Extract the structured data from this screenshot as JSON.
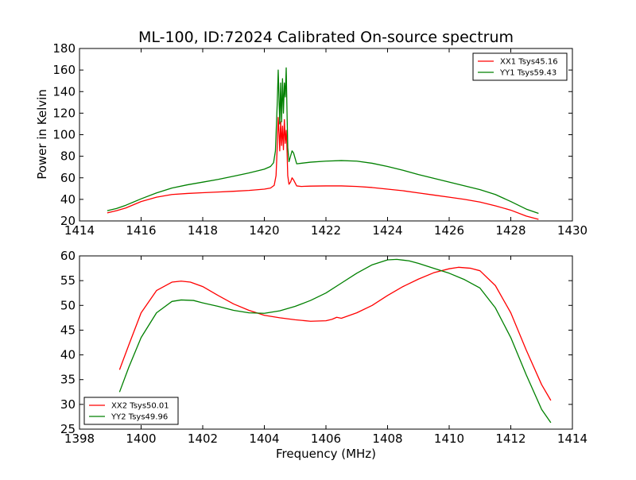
{
  "chart_data": [
    {
      "type": "line",
      "title": "ML-100, ID:72024 Calibrated On-source spectrum",
      "xlabel": "",
      "ylabel": "Power in Kelvin",
      "xlim": [
        1414,
        1430
      ],
      "ylim": [
        20,
        180
      ],
      "xticks": [
        1414,
        1416,
        1418,
        1420,
        1422,
        1424,
        1426,
        1428,
        1430
      ],
      "yticks": [
        20,
        40,
        60,
        80,
        100,
        120,
        140,
        160,
        180
      ],
      "grid": false,
      "legend_position": "top-right",
      "series": [
        {
          "name": "XX1 Tsys45.16",
          "color": "#ff0000",
          "points": [
            [
              1414.9,
              27.5
            ],
            [
              1415.2,
              29.5
            ],
            [
              1415.5,
              32
            ],
            [
              1416.0,
              38
            ],
            [
              1416.5,
              42
            ],
            [
              1417.0,
              44.5
            ],
            [
              1417.5,
              45.5
            ],
            [
              1418.0,
              46.2
            ],
            [
              1418.5,
              46.8
            ],
            [
              1419.0,
              47.5
            ],
            [
              1419.5,
              48.3
            ],
            [
              1420.0,
              49.5
            ],
            [
              1420.2,
              50.5
            ],
            [
              1420.32,
              53
            ],
            [
              1420.38,
              62
            ],
            [
              1420.42,
              90
            ],
            [
              1420.45,
              116
            ],
            [
              1420.48,
              100
            ],
            [
              1420.5,
              85
            ],
            [
              1420.53,
              112
            ],
            [
              1420.56,
              90
            ],
            [
              1420.59,
              108
            ],
            [
              1420.62,
              86
            ],
            [
              1420.65,
              114
            ],
            [
              1420.68,
              92
            ],
            [
              1420.71,
              104
            ],
            [
              1420.73,
              92
            ],
            [
              1420.76,
              62
            ],
            [
              1420.8,
              54
            ],
            [
              1420.85,
              56
            ],
            [
              1420.9,
              60
            ],
            [
              1420.95,
              58
            ],
            [
              1421.05,
              52.5
            ],
            [
              1421.2,
              52
            ],
            [
              1421.5,
              52.3
            ],
            [
              1422.0,
              52.5
            ],
            [
              1422.5,
              52.5
            ],
            [
              1423.0,
              52
            ],
            [
              1423.5,
              51
            ],
            [
              1424.0,
              49.5
            ],
            [
              1424.5,
              48
            ],
            [
              1425.0,
              46
            ],
            [
              1425.5,
              44
            ],
            [
              1426.0,
              42
            ],
            [
              1426.5,
              40
            ],
            [
              1427.0,
              37.5
            ],
            [
              1427.5,
              34
            ],
            [
              1428.0,
              30
            ],
            [
              1428.5,
              24.5
            ],
            [
              1428.9,
              21.5
            ]
          ]
        },
        {
          "name": "YY1 Tsys59.43",
          "color": "#008000",
          "points": [
            [
              1414.9,
              29.5
            ],
            [
              1415.2,
              31.5
            ],
            [
              1415.5,
              34.5
            ],
            [
              1416.0,
              40.5
            ],
            [
              1416.5,
              46
            ],
            [
              1417.0,
              50.5
            ],
            [
              1417.5,
              53.5
            ],
            [
              1418.0,
              56
            ],
            [
              1418.5,
              58.5
            ],
            [
              1419.0,
              61.5
            ],
            [
              1419.5,
              64.5
            ],
            [
              1420.0,
              68
            ],
            [
              1420.2,
              70.5
            ],
            [
              1420.3,
              74
            ],
            [
              1420.36,
              85
            ],
            [
              1420.42,
              130
            ],
            [
              1420.45,
              160
            ],
            [
              1420.48,
              130
            ],
            [
              1420.5,
              110
            ],
            [
              1420.53,
              148
            ],
            [
              1420.56,
              112
            ],
            [
              1420.59,
              152
            ],
            [
              1420.62,
              120
            ],
            [
              1420.65,
              148
            ],
            [
              1420.68,
              135
            ],
            [
              1420.71,
              162
            ],
            [
              1420.73,
              130
            ],
            [
              1420.76,
              88
            ],
            [
              1420.8,
              75
            ],
            [
              1420.85,
              80
            ],
            [
              1420.9,
              85
            ],
            [
              1420.95,
              83
            ],
            [
              1421.05,
              73
            ],
            [
              1421.2,
              73.5
            ],
            [
              1421.5,
              74.5
            ],
            [
              1422.0,
              75.5
            ],
            [
              1422.5,
              76
            ],
            [
              1423.0,
              75.5
            ],
            [
              1423.5,
              73.5
            ],
            [
              1424.0,
              70.5
            ],
            [
              1424.5,
              67
            ],
            [
              1425.0,
              63
            ],
            [
              1425.5,
              59.5
            ],
            [
              1426.0,
              56
            ],
            [
              1426.5,
              52.5
            ],
            [
              1427.0,
              49
            ],
            [
              1427.5,
              44.5
            ],
            [
              1428.0,
              38
            ],
            [
              1428.5,
              31
            ],
            [
              1428.9,
              27
            ]
          ]
        }
      ]
    },
    {
      "type": "line",
      "title": "",
      "xlabel": "Frequency (MHz)",
      "ylabel": "",
      "xlim": [
        1398,
        1414
      ],
      "ylim": [
        25,
        60
      ],
      "xticks": [
        1398,
        1400,
        1402,
        1404,
        1406,
        1408,
        1410,
        1412,
        1414
      ],
      "yticks": [
        25,
        30,
        35,
        40,
        45,
        50,
        55,
        60
      ],
      "grid": false,
      "legend_position": "bottom-left",
      "series": [
        {
          "name": "XX2 Tsys50.01",
          "color": "#ff0000",
          "points": [
            [
              1399.3,
              37
            ],
            [
              1399.6,
              42
            ],
            [
              1400.0,
              48.5
            ],
            [
              1400.5,
              53
            ],
            [
              1401.0,
              54.7
            ],
            [
              1401.3,
              54.9
            ],
            [
              1401.6,
              54.7
            ],
            [
              1402.0,
              53.8
            ],
            [
              1402.5,
              52
            ],
            [
              1403.0,
              50.3
            ],
            [
              1403.5,
              49
            ],
            [
              1404.0,
              48
            ],
            [
              1404.5,
              47.5
            ],
            [
              1405.0,
              47.1
            ],
            [
              1405.5,
              46.8
            ],
            [
              1406.0,
              46.9
            ],
            [
              1406.2,
              47.2
            ],
            [
              1406.35,
              47.6
            ],
            [
              1406.5,
              47.4
            ],
            [
              1407.0,
              48.5
            ],
            [
              1407.5,
              50
            ],
            [
              1408.0,
              52
            ],
            [
              1408.5,
              53.8
            ],
            [
              1409.0,
              55.3
            ],
            [
              1409.5,
              56.6
            ],
            [
              1410.0,
              57.4
            ],
            [
              1410.3,
              57.7
            ],
            [
              1410.7,
              57.5
            ],
            [
              1411.0,
              57
            ],
            [
              1411.5,
              54
            ],
            [
              1412.0,
              48.5
            ],
            [
              1412.5,
              41
            ],
            [
              1413.0,
              34
            ],
            [
              1413.3,
              30.8
            ]
          ]
        },
        {
          "name": "YY2 Tsys49.96",
          "color": "#008000",
          "points": [
            [
              1399.3,
              32.5
            ],
            [
              1399.6,
              37.5
            ],
            [
              1400.0,
              43.5
            ],
            [
              1400.5,
              48.5
            ],
            [
              1401.0,
              50.8
            ],
            [
              1401.3,
              51.1
            ],
            [
              1401.7,
              51
            ],
            [
              1402.0,
              50.5
            ],
            [
              1402.5,
              49.8
            ],
            [
              1403.0,
              49
            ],
            [
              1403.5,
              48.5
            ],
            [
              1404.0,
              48.4
            ],
            [
              1404.5,
              48.9
            ],
            [
              1405.0,
              49.8
            ],
            [
              1405.5,
              51
            ],
            [
              1406.0,
              52.5
            ],
            [
              1406.5,
              54.5
            ],
            [
              1407.0,
              56.5
            ],
            [
              1407.5,
              58.2
            ],
            [
              1408.0,
              59.2
            ],
            [
              1408.3,
              59.3
            ],
            [
              1408.7,
              59
            ],
            [
              1409.0,
              58.5
            ],
            [
              1409.5,
              57.5
            ],
            [
              1410.0,
              56.5
            ],
            [
              1410.5,
              55.2
            ],
            [
              1411.0,
              53.5
            ],
            [
              1411.5,
              49.5
            ],
            [
              1412.0,
              43.5
            ],
            [
              1412.5,
              36
            ],
            [
              1413.0,
              29
            ],
            [
              1413.3,
              26.3
            ]
          ]
        }
      ]
    }
  ]
}
